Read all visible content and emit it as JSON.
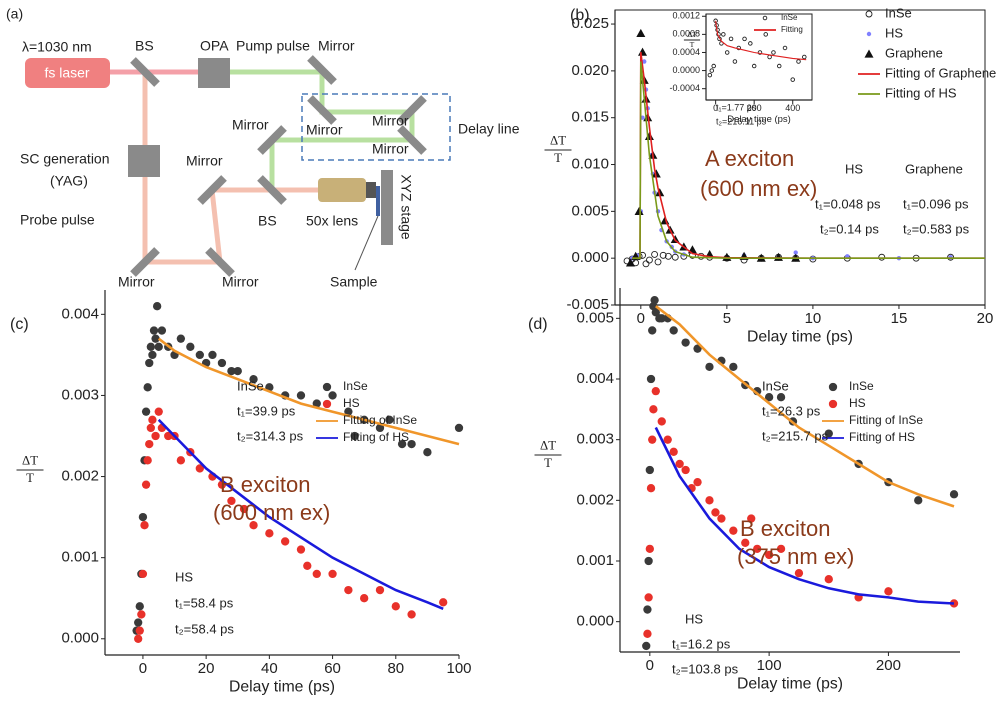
{
  "diagram": {
    "labels": [
      "(a)",
      "λ=1030 nm",
      "fs laser",
      "BS",
      "OPA",
      "Pump pulse",
      "Mirror",
      "Mirror",
      "Mirror",
      "Mirror",
      "Mirror",
      "Delay line",
      "SC generation",
      "(YAG)",
      "Mirror",
      "BS",
      "50x lens",
      "XYZ stage",
      "Probe pulse",
      "Mirror",
      "Mirror",
      "Sample"
    ]
  },
  "chart_data": [
    {
      "type": "scatter",
      "panel_label": "(b)",
      "xlabel": "Delay time (ps)",
      "ylabel": [
        "ΔT",
        "T"
      ],
      "xlim": [
        -1.5,
        20
      ],
      "ylim": [
        -0.005,
        0.0265
      ],
      "xticks": [
        0,
        5,
        10,
        15,
        20
      ],
      "yticks": [
        -0.005,
        {
          "value": 0,
          "label": "0.000"
        },
        0.005,
        {
          "value": 0.01,
          "label": "0.010"
        },
        0.015,
        {
          "value": 0.02,
          "label": "0.020"
        },
        0.025
      ],
      "legend": "upper right",
      "series": [
        {
          "name": "InSe",
          "color": "#222222",
          "marker": "open-circle",
          "x": [
            -0.8,
            -0.5,
            -0.3,
            -0.1,
            0.1,
            0.3,
            0.5,
            0.8,
            1.0,
            1.3,
            1.6,
            2.0,
            2.5,
            3,
            3.5,
            4,
            5,
            6,
            7,
            8,
            9,
            10,
            12,
            14,
            16,
            18
          ],
          "values": [
            -0.0003,
            -0.0001,
            -0.0005,
            0.0002,
            0.0003,
            -0.0006,
            -0.0002,
            0.0004,
            -0.0004,
            0.0003,
            0.0002,
            0.0001,
            0.0002,
            0.0003,
            0.0002,
            0.0001,
            0,
            -0.0002,
            0,
            0.0001,
            0,
            -0.0001,
            0,
            0.0001,
            0,
            0.0001
          ]
        },
        {
          "name": "HS",
          "color": "#8080ff",
          "marker": "dot",
          "x": [
            -0.5,
            -0.2,
            0,
            0.1,
            0.2,
            0.3,
            0.4,
            0.5,
            0.6,
            0.7,
            0.8,
            1.0,
            1.2,
            1.5,
            1.8,
            2.0,
            2.5,
            3,
            4,
            5,
            6,
            8,
            9,
            10,
            12,
            15,
            18
          ],
          "values": [
            0,
            0.0003,
            0.005,
            0.015,
            0.021,
            0.018,
            0.016,
            0.013,
            0.011,
            0.009,
            0.007,
            0.005,
            0.003,
            0.0018,
            0.0012,
            0.0007,
            0.0004,
            0.0008,
            0.0002,
            0,
            0.0003,
            0.0001,
            0.0006,
            0,
            0.0002,
            0,
            0.0001
          ]
        },
        {
          "name": "Graphene",
          "color": "#111111",
          "marker": "triangle",
          "x": [
            -0.6,
            -0.3,
            -0.1,
            0,
            0.1,
            0.2,
            0.3,
            0.4,
            0.5,
            0.7,
            0.9,
            1.1,
            1.4,
            1.7,
            2.0,
            2.5,
            3,
            4,
            5,
            6,
            7,
            8,
            9
          ],
          "values": [
            -0.0005,
            0.0002,
            0.005,
            0.024,
            0.022,
            0.019,
            0.017,
            0.015,
            0.013,
            0.011,
            0.009,
            0.007,
            0.004,
            0.003,
            0.002,
            0.0012,
            0.0009,
            0.0004,
            0.0001,
            0.0002,
            0,
            0.0001,
            0
          ]
        },
        {
          "name": "Fitting of Graphene",
          "color": "#e02020",
          "marker": "none",
          "x": [
            -0.5,
            -0.05,
            0,
            0.2,
            0.5,
            0.8,
            1,
            1.5,
            2,
            3,
            4,
            5,
            10,
            20
          ],
          "values": [
            0,
            0,
            0.022,
            0.019,
            0.014,
            0.0095,
            0.0075,
            0.0038,
            0.0019,
            0.0005,
            0.00015,
            5e-05,
            0,
            0
          ]
        },
        {
          "name": "Fitting of HS",
          "color": "#7a9a1a",
          "marker": "none",
          "x": [
            -0.5,
            -0.05,
            0,
            0.2,
            0.5,
            1,
            1.5,
            2,
            3,
            5,
            10,
            20
          ],
          "values": [
            0,
            0,
            0.021,
            0.017,
            0.011,
            0.0045,
            0.0018,
            0.0007,
            0.0001,
            0,
            0,
            0
          ]
        }
      ],
      "annotations": [
        "A exciton",
        "(600 nm ex)",
        "HS",
        "Graphene",
        "t₁=0.048 ps",
        "t₂=0.14 ps",
        "t₁=0.096 ps",
        "t₂=0.583 ps"
      ],
      "inset": {
        "type": "scatter",
        "xlabel": "Delay time (ps)",
        "ylabel": [
          "ΔT",
          "T"
        ],
        "xlim": [
          -50,
          500
        ],
        "ylim": [
          -0.00065,
          0.00125
        ],
        "xticks": [
          0,
          200,
          400
        ],
        "yticks": [
          -0.0004,
          {
            "value": 0,
            "label": "0.0000"
          },
          0.0004,
          0.0008,
          0.0012
        ],
        "legend": "upper right",
        "series": [
          {
            "name": "InSe",
            "color": "#222222",
            "marker": "open-circle",
            "x": [
              -30,
              -20,
              -10,
              0,
              5,
              10,
              15,
              20,
              30,
              40,
              60,
              80,
              100,
              120,
              150,
              180,
              200,
              230,
              260,
              280,
              300,
              330,
              360,
              400,
              430,
              460
            ],
            "values": [
              -0.0001,
              0,
              0.0001,
              0.0011,
              0.001,
              0.0009,
              0.0008,
              0.0007,
              0.0006,
              0.0008,
              0.0004,
              0.0007,
              0.0002,
              0.0005,
              0.0007,
              0.0006,
              0.0001,
              0.0004,
              0.0008,
              0.0003,
              0.0004,
              0.0001,
              0.0005,
              -0.0002,
              0.0002,
              0.0003
            ]
          },
          {
            "name": "Fitting",
            "color": "#e02020",
            "marker": "none",
            "x": [
              0,
              10,
              30,
              60,
              100,
              150,
              200,
              300,
              400,
              470
            ],
            "values": [
              0.0011,
              0.0008,
              0.00065,
              0.00055,
              0.0005,
              0.00045,
              0.0004,
              0.00033,
              0.00027,
              0.00024
            ]
          }
        ],
        "annotations": [
          "t₁=1.77 ps",
          "t₂=216.11 ps"
        ]
      }
    },
    {
      "type": "scatter",
      "panel_label": "(c)",
      "xlabel": "Delay time (ps)",
      "ylabel": [
        "ΔT",
        "T"
      ],
      "xlim": [
        -12,
        100
      ],
      "ylim": [
        -0.0002,
        0.0043
      ],
      "xticks": [
        0,
        20,
        40,
        60,
        80,
        100
      ],
      "yticks": [
        {
          "value": 0,
          "label": "0.000"
        },
        0.001,
        0.002,
        0.003,
        0.004
      ],
      "legend": "upper right",
      "series": [
        {
          "name": "InSe",
          "color": "#3a3a3a",
          "marker": "circle",
          "x": [
            -2,
            -1.5,
            -1,
            -0.5,
            0,
            0.5,
            1,
            1.5,
            2,
            2.5,
            3,
            3.5,
            4,
            4.5,
            5,
            6,
            8,
            10,
            12,
            15,
            18,
            20,
            22,
            25,
            28,
            30,
            35,
            40,
            45,
            50,
            55,
            60,
            65,
            67,
            70,
            75,
            78,
            82,
            85,
            90,
            100
          ],
          "values": [
            0.0001,
            0.0002,
            0.0004,
            0.0008,
            0.0015,
            0.0022,
            0.0028,
            0.0031,
            0.0034,
            0.0036,
            0.0035,
            0.0038,
            0.0037,
            0.0041,
            0.0036,
            0.0038,
            0.0036,
            0.0035,
            0.0037,
            0.0036,
            0.0035,
            0.0034,
            0.0035,
            0.0034,
            0.0033,
            0.0033,
            0.0032,
            0.0031,
            0.003,
            0.003,
            0.0029,
            0.003,
            0.0028,
            0.0025,
            0.0027,
            0.0026,
            0.0027,
            0.0024,
            0.0024,
            0.0023,
            0.0026
          ]
        },
        {
          "name": "HS",
          "color": "#e8312a",
          "marker": "circle",
          "x": [
            -1.5,
            -1,
            -0.5,
            0,
            0.5,
            1,
            1.5,
            2,
            2.5,
            3,
            4,
            5,
            6,
            8,
            10,
            12,
            15,
            18,
            22,
            25,
            28,
            32,
            35,
            40,
            45,
            50,
            52,
            55,
            60,
            65,
            70,
            75,
            80,
            85,
            95
          ],
          "values": [
            0,
            0.0001,
            0.0003,
            0.0008,
            0.0014,
            0.0019,
            0.0022,
            0.0024,
            0.0026,
            0.0027,
            0.0025,
            0.0028,
            0.0026,
            0.0025,
            0.0025,
            0.0022,
            0.0023,
            0.0021,
            0.002,
            0.0019,
            0.0017,
            0.0016,
            0.0014,
            0.0013,
            0.0012,
            0.0011,
            0.0009,
            0.0008,
            0.0008,
            0.0006,
            0.0005,
            0.0006,
            0.0004,
            0.0003,
            0.00045
          ]
        },
        {
          "name": "Fitting of InSe",
          "color": "#f0962a",
          "marker": "none",
          "x": [
            5,
            10,
            20,
            30,
            40,
            50,
            60,
            70,
            80,
            90,
            100
          ],
          "values": [
            0.0037,
            0.00355,
            0.00335,
            0.0032,
            0.00305,
            0.0029,
            0.0028,
            0.0027,
            0.0026,
            0.0025,
            0.0024
          ]
        },
        {
          "name": "Fitting of HS",
          "color": "#1a1adc",
          "marker": "none",
          "x": [
            5,
            10,
            20,
            30,
            40,
            50,
            60,
            70,
            80,
            90,
            95
          ],
          "values": [
            0.0027,
            0.0025,
            0.0021,
            0.0018,
            0.0015,
            0.00125,
            0.001,
            0.0008,
            0.0006,
            0.00045,
            0.00037
          ]
        }
      ],
      "annotations": [
        "InSe",
        "t₁=39.9 ps",
        "t₂=314.3 ps",
        "B exciton",
        "(600 nm ex)",
        "HS",
        "t₁=58.4 ps",
        "t₂=58.4 ps"
      ]
    },
    {
      "type": "scatter",
      "panel_label": "(d)",
      "xlabel": "Delay time (ps)",
      "ylabel": [
        "ΔT",
        "T"
      ],
      "xlim": [
        -25,
        260
      ],
      "ylim": [
        -0.0005,
        0.0055
      ],
      "xticks": [
        0,
        100,
        200
      ],
      "yticks": [
        {
          "value": 0,
          "label": "0.000"
        },
        0.001,
        0.002,
        0.003,
        0.004,
        0.005
      ],
      "legend": "upper right",
      "series": [
        {
          "name": "InSe",
          "color": "#3a3a3a",
          "marker": "circle",
          "x": [
            -3,
            -2,
            -1,
            0,
            1,
            2,
            3,
            4,
            5,
            8,
            10,
            15,
            20,
            30,
            40,
            50,
            60,
            70,
            80,
            90,
            100,
            110,
            120,
            150,
            175,
            200,
            225,
            255
          ],
          "values": [
            -0.0004,
            0.0002,
            0.001,
            0.0025,
            0.004,
            0.0048,
            0.0052,
            0.0053,
            0.0051,
            0.005,
            0.005,
            0.005,
            0.0048,
            0.0046,
            0.0045,
            0.0042,
            0.0043,
            0.0042,
            0.0039,
            0.0038,
            0.0037,
            0.0037,
            0.0033,
            0.0031,
            0.0026,
            0.0023,
            0.002,
            0.0021
          ]
        },
        {
          "name": "HS",
          "color": "#e8312a",
          "marker": "circle",
          "x": [
            -2,
            -1,
            0,
            1,
            2,
            3,
            5,
            10,
            15,
            20,
            25,
            30,
            35,
            40,
            50,
            55,
            60,
            70,
            80,
            85,
            90,
            100,
            110,
            125,
            150,
            175,
            200,
            255
          ],
          "values": [
            -0.0002,
            0.0004,
            0.0012,
            0.0022,
            0.003,
            0.0035,
            0.0038,
            0.0033,
            0.003,
            0.0028,
            0.0026,
            0.0025,
            0.0022,
            0.0023,
            0.002,
            0.0018,
            0.0017,
            0.0015,
            0.0013,
            0.0017,
            0.0012,
            0.0011,
            0.0012,
            0.0008,
            0.0007,
            0.0004,
            0.0005,
            0.0003
          ]
        },
        {
          "name": "Fitting of InSe",
          "color": "#f0962a",
          "marker": "none",
          "x": [
            5,
            25,
            50,
            75,
            100,
            125,
            150,
            175,
            200,
            225,
            255
          ],
          "values": [
            0.0052,
            0.0049,
            0.0044,
            0.004,
            0.0036,
            0.0032,
            0.0029,
            0.0026,
            0.0023,
            0.0021,
            0.0019
          ]
        },
        {
          "name": "Fitting of HS",
          "color": "#1a1adc",
          "marker": "none",
          "x": [
            5,
            25,
            50,
            75,
            100,
            125,
            150,
            175,
            200,
            225,
            255
          ],
          "values": [
            0.0032,
            0.0024,
            0.0017,
            0.0012,
            0.0009,
            0.0007,
            0.00055,
            0.00045,
            0.0004,
            0.00033,
            0.0003
          ]
        }
      ],
      "annotations": [
        "InSe",
        "t₁=26.3 ps",
        "t₂=215.7 ps",
        "B exciton",
        "(375 nm ex)",
        "HS",
        "t₁=16.2 ps",
        "t₂=103.8 ps"
      ]
    }
  ]
}
